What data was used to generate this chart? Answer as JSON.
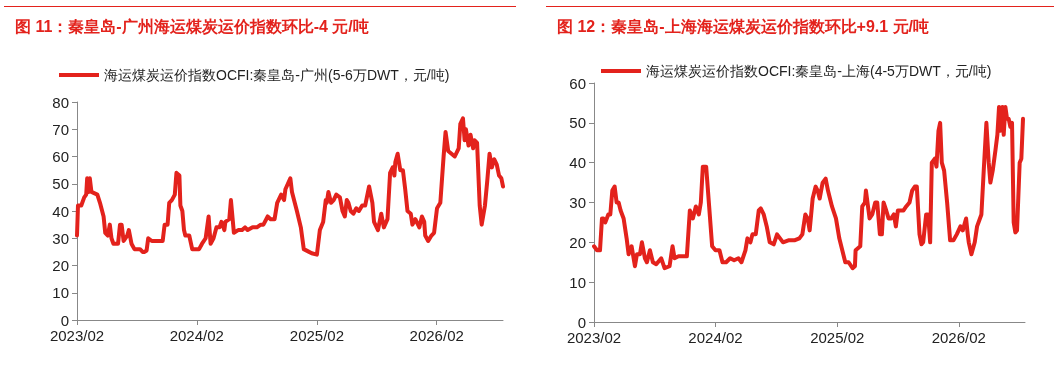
{
  "chart_data": [
    {
      "type": "line",
      "title": "图 11：秦皇岛-广州海运煤炭运价指数环比-4 元/吨",
      "legend": "top left",
      "marker": "none",
      "grid": false,
      "xlim": [
        "2023-02-01",
        "2026-08-22"
      ],
      "xticks": [
        {
          "value": "2023-02-01",
          "label": "2023/02"
        },
        {
          "value": "2024-02-01",
          "label": "2024/02"
        },
        {
          "value": "2025-02-01",
          "label": "2025/02"
        },
        {
          "value": "2026-02-01",
          "label": "2026/02"
        }
      ],
      "ylim": [
        0,
        80
      ],
      "yticks": [
        0,
        10,
        20,
        30,
        40,
        50,
        60,
        70,
        80
      ],
      "series": [
        {
          "name": "海运煤炭运价指数OCFI:秦皇岛-广州(5-6万DWT，元/吨)",
          "color": "#e3221c",
          "x": [
            "2023-02-01",
            "2023-02-04",
            "2023-02-14",
            "2023-02-23",
            "2023-03-01",
            "2023-03-04",
            "2023-03-09",
            "2023-03-12",
            "2023-03-17",
            "2023-04-04",
            "2023-04-12",
            "2023-04-23",
            "2023-04-28",
            "2023-05-06",
            "2023-05-12",
            "2023-05-17",
            "2023-05-23",
            "2023-06-06",
            "2023-06-12",
            "2023-06-17",
            "2023-06-23",
            "2023-07-04",
            "2023-07-09",
            "2023-07-17",
            "2023-07-26",
            "2023-08-12",
            "2023-08-20",
            "2023-08-26",
            "2023-09-01",
            "2023-09-06",
            "2023-09-17",
            "2023-10-01",
            "2023-10-06",
            "2023-10-20",
            "2023-10-26",
            "2023-11-04",
            "2023-11-09",
            "2023-11-17",
            "2023-11-26",
            "2023-12-01",
            "2023-12-10",
            "2023-12-13",
            "2023-12-19",
            "2023-12-24",
            "2023-12-28",
            "2024-01-09",
            "2024-01-18",
            "2024-02-08",
            "2024-02-17",
            "2024-02-28",
            "2024-03-08",
            "2024-03-14",
            "2024-03-23",
            "2024-04-01",
            "2024-04-10",
            "2024-04-16",
            "2024-04-25",
            "2024-04-28",
            "2024-05-10",
            "2024-05-15",
            "2024-05-24",
            "2024-06-06",
            "2024-06-18",
            "2024-06-27",
            "2024-07-05",
            "2024-07-20",
            "2024-08-02",
            "2024-08-14",
            "2024-08-22",
            "2024-09-04",
            "2024-09-13",
            "2024-09-25",
            "2024-10-03",
            "2024-10-15",
            "2024-10-24",
            "2024-10-28",
            "2024-11-12",
            "2024-11-17",
            "2024-12-02",
            "2024-12-14",
            "2024-12-23",
            "2025-01-08",
            "2025-01-16",
            "2025-02-01",
            "2025-02-10",
            "2025-02-20",
            "2025-02-28",
            "2025-03-03",
            "2025-03-08",
            "2025-03-16",
            "2025-03-24",
            "2025-04-01",
            "2025-04-12",
            "2025-04-20",
            "2025-04-27",
            "2025-05-03",
            "2025-05-08",
            "2025-05-15",
            "2025-05-23",
            "2025-06-01",
            "2025-06-09",
            "2025-06-19",
            "2025-06-28",
            "2025-07-10",
            "2025-07-20",
            "2025-07-25",
            "2025-08-06",
            "2025-08-16",
            "2025-08-24",
            "2025-09-04",
            "2025-09-12",
            "2025-09-20",
            "2025-09-25",
            "2025-09-28",
            "2025-10-05",
            "2025-10-13",
            "2025-10-21",
            "2025-10-28",
            "2025-11-04",
            "2025-11-14",
            "2025-11-19",
            "2025-11-28",
            "2025-12-10",
            "2025-12-18",
            "2025-12-25",
            "2025-12-28",
            "2026-01-06",
            "2026-01-16",
            "2026-01-24",
            "2026-02-02",
            "2026-02-12",
            "2026-02-22",
            "2026-02-28",
            "2026-03-08",
            "2026-03-18",
            "2026-03-28",
            "2026-04-09",
            "2026-04-14",
            "2026-04-22",
            "2026-04-27",
            "2026-05-01",
            "2026-05-09",
            "2026-05-15",
            "2026-05-23",
            "2026-05-27",
            "2026-06-04",
            "2026-06-12",
            "2026-06-18",
            "2026-06-28",
            "2026-07-05",
            "2026-07-12",
            "2026-07-19",
            "2026-07-26",
            "2026-08-03",
            "2026-08-10",
            "2026-08-17",
            "2026-08-22"
          ],
          "values": [
            31,
            42,
            42,
            45,
            46,
            52,
            47,
            52,
            47,
            46,
            43,
            38,
            32,
            31,
            35,
            30,
            28,
            28,
            35,
            35,
            29,
            31,
            33,
            28,
            26,
            26,
            25,
            25,
            25.5,
            30,
            29,
            29,
            29,
            29,
            35,
            35,
            43,
            44,
            46,
            54,
            53,
            42,
            40,
            33,
            31,
            31,
            26,
            26,
            28,
            30,
            38,
            28,
            30,
            34,
            34,
            36,
            33,
            36,
            37,
            44,
            32,
            33,
            33,
            34,
            33,
            34,
            34,
            35,
            35,
            38,
            37,
            37,
            43,
            46,
            44,
            48,
            52,
            47,
            40,
            34,
            26,
            25,
            24.5,
            24,
            33,
            36,
            44,
            43,
            47,
            43,
            44,
            46,
            45,
            40,
            38,
            44,
            43,
            40,
            39,
            41,
            40,
            42,
            42,
            49,
            43,
            36,
            33,
            39,
            34,
            37,
            54,
            56,
            53,
            58,
            61,
            55,
            55,
            48,
            40,
            39,
            35,
            37,
            34,
            38,
            36,
            31,
            29,
            31,
            32,
            41,
            43,
            60,
            69,
            62,
            61,
            60,
            63,
            72,
            74,
            66,
            70,
            64,
            68,
            63,
            66,
            65,
            42,
            35,
            42,
            51,
            61,
            56,
            59,
            57,
            53,
            52,
            49
          ]
        }
      ]
    },
    {
      "type": "line",
      "title": "图 12：秦皇岛-上海海运煤炭运价指数环比+9.1 元/吨",
      "legend": "top left",
      "marker": "none",
      "grid": false,
      "xlim": [
        "2023-02-01",
        "2026-08-19"
      ],
      "xticks": [
        {
          "value": "2023-02-01",
          "label": "2023/02"
        },
        {
          "value": "2024-02-01",
          "label": "2024/02"
        },
        {
          "value": "2025-02-01",
          "label": "2025/02"
        },
        {
          "value": "2026-02-01",
          "label": "2026/02"
        }
      ],
      "ylim": [
        0,
        60
      ],
      "yticks": [
        0,
        10,
        20,
        30,
        40,
        50,
        60
      ],
      "series": [
        {
          "name": "海运煤炭运价指数OCFI:秦皇岛-上海(4-5万DWT，元/吨)",
          "color": "#e3221c",
          "x": [
            "2023-02-01",
            "2023-02-10",
            "2023-02-19",
            "2023-02-25",
            "2023-03-01",
            "2023-03-07",
            "2023-03-16",
            "2023-03-22",
            "2023-03-28",
            "2023-04-04",
            "2023-04-10",
            "2023-04-16",
            "2023-04-22",
            "2023-05-01",
            "2023-05-10",
            "2023-05-16",
            "2023-05-25",
            "2023-06-04",
            "2023-06-10",
            "2023-06-19",
            "2023-06-25",
            "2023-07-04",
            "2023-07-10",
            "2023-07-19",
            "2023-07-28",
            "2023-08-07",
            "2023-08-22",
            "2023-09-01",
            "2023-09-16",
            "2023-09-25",
            "2023-10-01",
            "2023-10-13",
            "2023-10-25",
            "2023-11-07",
            "2023-11-16",
            "2023-11-25",
            "2023-12-04",
            "2023-12-13",
            "2023-12-19",
            "2023-12-25",
            "2024-01-04",
            "2024-01-13",
            "2024-01-22",
            "2024-02-01",
            "2024-02-13",
            "2024-02-22",
            "2024-03-04",
            "2024-03-16",
            "2024-03-28",
            "2024-04-10",
            "2024-04-19",
            "2024-05-01",
            "2024-05-07",
            "2024-05-16",
            "2024-05-22",
            "2024-06-01",
            "2024-06-10",
            "2024-06-16",
            "2024-06-25",
            "2024-07-04",
            "2024-07-13",
            "2024-07-25",
            "2024-08-04",
            "2024-08-13",
            "2024-08-22",
            "2024-09-07",
            "2024-09-25",
            "2024-10-10",
            "2024-10-19",
            "2024-10-28",
            "2024-11-04",
            "2024-11-10",
            "2024-11-19",
            "2024-11-28",
            "2024-12-04",
            "2024-12-10",
            "2024-12-19",
            "2024-12-28",
            "2025-01-04",
            "2025-01-16",
            "2025-01-28",
            "2025-02-07",
            "2025-02-16",
            "2025-02-25",
            "2025-03-07",
            "2025-03-19",
            "2025-03-26",
            "2025-03-28",
            "2025-04-11",
            "2025-04-17",
            "2025-04-25",
            "2025-04-28",
            "2025-05-09",
            "2025-05-17",
            "2025-05-26",
            "2025-06-01",
            "2025-06-09",
            "2025-06-15",
            "2025-06-20",
            "2025-06-28",
            "2025-07-05",
            "2025-07-13",
            "2025-07-21",
            "2025-07-27",
            "2025-08-02",
            "2025-08-11",
            "2025-08-19",
            "2025-08-27",
            "2025-09-06",
            "2025-09-14",
            "2025-09-22",
            "2025-09-28",
            "2025-10-06",
            "2025-10-12",
            "2025-10-17",
            "2025-10-26",
            "2025-11-01",
            "2025-11-07",
            "2025-11-12",
            "2025-11-21",
            "2025-11-26",
            "2025-12-02",
            "2025-12-07",
            "2025-12-12",
            "2025-12-19",
            "2025-12-28",
            "2026-01-06",
            "2026-01-16",
            "2026-01-26",
            "2026-02-06",
            "2026-02-13",
            "2026-02-23",
            "2026-02-28",
            "2026-03-03",
            "2026-03-11",
            "2026-03-21",
            "2026-03-28",
            "2026-04-10",
            "2026-04-17",
            "2026-04-25",
            "2026-05-02",
            "2026-05-07",
            "2026-05-14",
            "2026-05-22",
            "2026-05-28",
            "2026-06-02",
            "2026-06-06",
            "2026-06-12",
            "2026-06-16",
            "2026-06-21",
            "2026-06-26",
            "2026-07-01",
            "2026-07-06",
            "2026-07-11",
            "2026-07-16",
            "2026-07-21",
            "2026-07-26",
            "2026-08-03",
            "2026-08-08",
            "2026-08-13"
          ],
          "values": [
            19,
            18,
            18,
            26,
            26,
            25,
            27,
            27,
            33,
            34,
            30,
            30,
            28,
            26,
            21,
            17,
            19,
            14,
            17,
            17,
            20,
            16,
            15,
            18,
            15,
            14.5,
            16,
            13.5,
            14,
            19,
            16,
            16.5,
            16.5,
            16.5,
            28,
            26,
            29,
            27,
            30,
            39,
            39,
            29,
            19,
            18,
            18,
            15,
            15,
            16,
            15.5,
            16,
            15,
            18,
            21,
            20,
            22,
            22,
            28,
            28.5,
            27,
            24,
            20,
            19.5,
            22,
            21,
            20,
            20.5,
            20.5,
            21,
            22,
            27,
            26,
            23,
            31,
            34,
            33,
            31,
            35,
            36,
            33,
            29,
            26,
            21,
            18,
            15,
            15,
            13.5,
            14,
            18,
            19,
            29,
            30,
            33,
            26,
            27,
            30,
            30,
            22,
            22,
            30,
            28,
            26,
            26,
            27,
            24,
            28,
            28,
            28,
            29,
            30,
            33,
            34,
            34,
            22,
            19.5,
            20,
            27,
            27,
            20,
            40,
            41,
            39,
            48,
            50,
            40,
            38,
            30,
            20.5,
            20.5,
            22,
            24,
            23,
            26,
            22,
            20,
            17,
            20,
            24,
            27,
            38,
            50,
            40,
            35,
            38,
            43,
            47,
            54,
            48,
            54,
            47,
            54,
            51,
            51,
            49,
            50,
            25,
            22.5,
            23,
            40,
            41,
            51
          ]
        }
      ]
    }
  ]
}
